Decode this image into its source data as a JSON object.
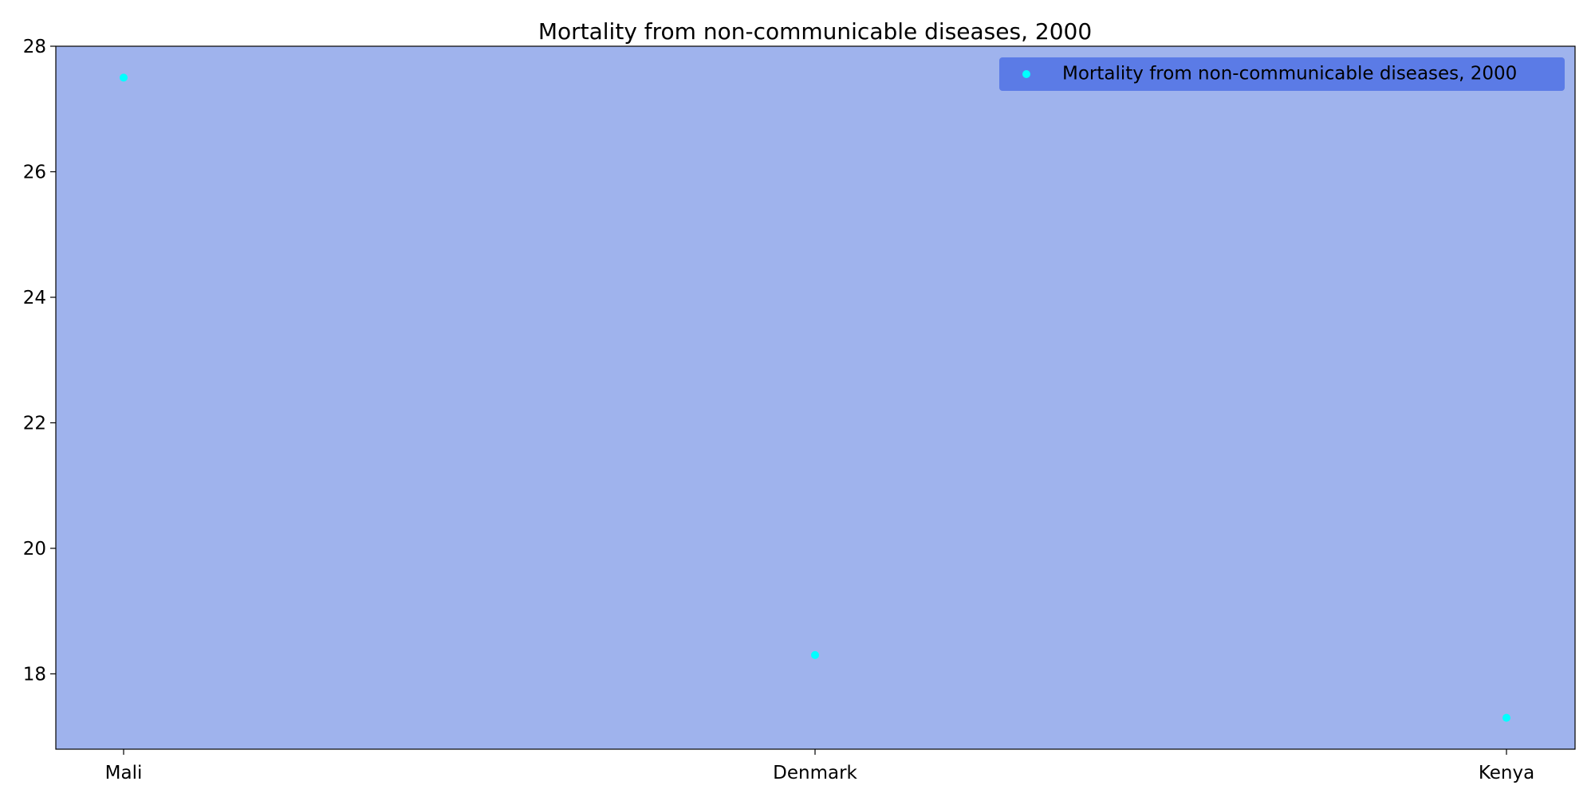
{
  "chart_data": {
    "type": "scatter",
    "title": "Mortality from non-communicable diseases, 2000",
    "xlabel": "",
    "ylabel": "",
    "categories": [
      "Mali",
      "Denmark",
      "Kenya"
    ],
    "series": [
      {
        "name": "Mortality from non-communicable diseases, 2000",
        "values": [
          27.5,
          18.3,
          17.3
        ],
        "color": "#00ffff"
      }
    ],
    "ylim": [
      16.8,
      28
    ],
    "yticks": [
      18,
      20,
      22,
      24,
      26,
      28
    ],
    "grid": false,
    "legend_position": "top-right",
    "plot_background": "#9fb3ed",
    "legend_background": "#5b7be6"
  }
}
